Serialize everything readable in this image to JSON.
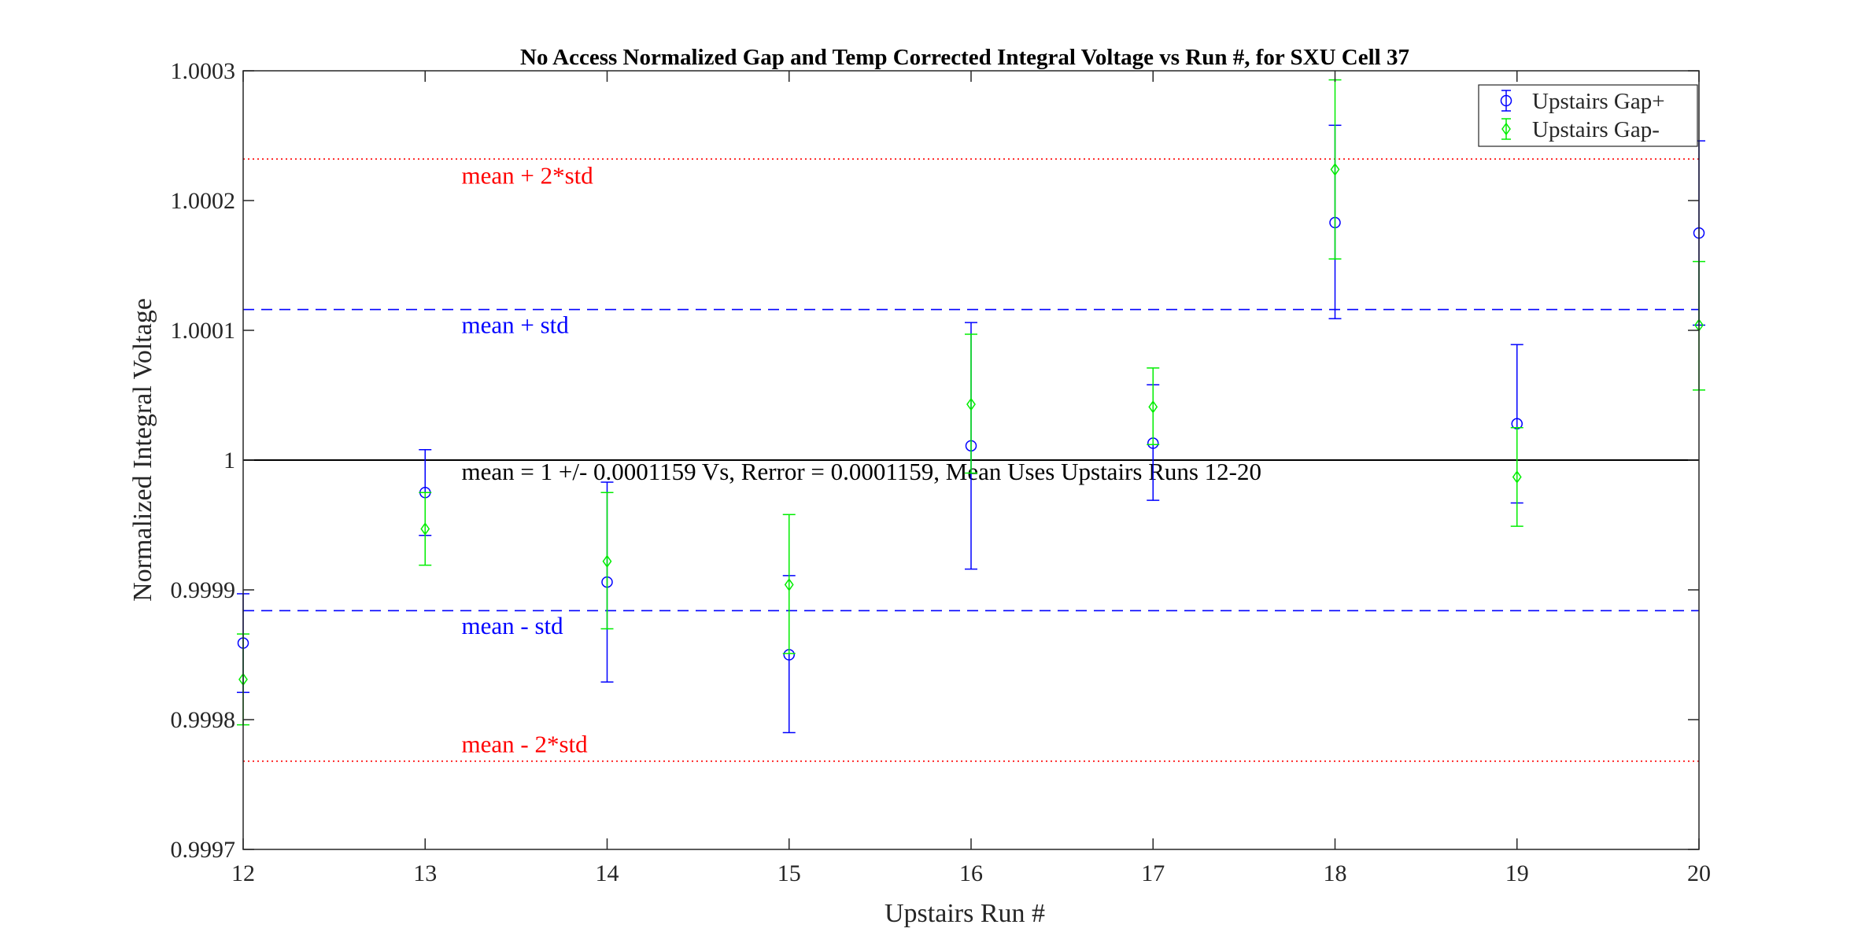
{
  "chart_data": {
    "type": "scatter",
    "title": "No Access Normalized Gap and Temp Corrected Integral Voltage vs Run #, for SXU Cell 37",
    "xlabel": "Upstairs Run #",
    "ylabel": "Normalized Integral Voltage",
    "xlim": [
      12,
      20
    ],
    "ylim": [
      0.9997,
      1.0003
    ],
    "x_ticks": [
      12,
      13,
      14,
      15,
      16,
      17,
      18,
      19,
      20
    ],
    "x_tick_labels": [
      "12",
      "13",
      "14",
      "15",
      "16",
      "17",
      "18",
      "19",
      "20"
    ],
    "y_ticks": [
      0.9997,
      0.9998,
      0.9999,
      1.0,
      1.0001,
      1.0002,
      1.0003
    ],
    "y_tick_labels": [
      "0.9997",
      "0.9998",
      "0.9999",
      "1",
      "1.0001",
      "1.0002",
      "1.0003"
    ],
    "grid": false,
    "legend_position": "top-right",
    "series": [
      {
        "name": "Upstairs Gap+",
        "marker": "circle",
        "color": "#0000ff",
        "x": [
          12,
          13,
          14,
          15,
          16,
          17,
          18,
          19,
          20
        ],
        "y": [
          0.999859,
          0.999975,
          0.999906,
          0.99985,
          1.000011,
          1.000013,
          1.000183,
          1.000028,
          1.000175
        ],
        "err_low": [
          0.999821,
          0.999942,
          0.999829,
          0.99979,
          0.999916,
          0.999969,
          1.000109,
          0.999967,
          1.000104
        ],
        "err_high": [
          0.999897,
          1.000008,
          0.999983,
          0.999911,
          1.000106,
          1.000058,
          1.000258,
          1.000089,
          1.000246
        ]
      },
      {
        "name": "Upstairs Gap-",
        "marker": "diamond",
        "color": "#00ee00",
        "x": [
          12,
          13,
          14,
          15,
          16,
          17,
          18,
          19,
          20
        ],
        "y": [
          0.999831,
          0.999947,
          0.999922,
          0.999904,
          1.000043,
          1.000041,
          1.000224,
          0.999987,
          1.000104
        ],
        "err_low": [
          0.999796,
          0.999919,
          0.99987,
          0.999851,
          0.99999,
          1.000012,
          1.000155,
          0.999949,
          1.000054
        ],
        "err_high": [
          0.999866,
          0.999975,
          0.999975,
          0.999958,
          1.000097,
          1.000071,
          1.000293,
          1.000025,
          1.000153
        ]
      }
    ],
    "reference_lines": [
      {
        "value": 1.000232,
        "style": "dotted",
        "color": "#ff0000"
      },
      {
        "value": 1.000116,
        "style": "dashed",
        "color": "#0000ff"
      },
      {
        "value": 1.0,
        "style": "solid",
        "color": "#000000"
      },
      {
        "value": 0.999884,
        "style": "dashed",
        "color": "#0000ff"
      },
      {
        "value": 0.999768,
        "style": "dotted",
        "color": "#ff0000"
      }
    ],
    "annotations": [
      {
        "text": "mean + 2*std",
        "x": 13.2,
        "y": 1.000213,
        "color": "#ff0000"
      },
      {
        "text": "mean + std",
        "x": 13.2,
        "y": 1.000098,
        "color": "#0000ff"
      },
      {
        "text": "mean = 1 +/- 0.0001159 Vs, Rerror = 0.0001159, Mean Uses Upstairs Runs 12-20",
        "x": 13.2,
        "y": 0.999985,
        "color": "#000000"
      },
      {
        "text": "mean - std",
        "x": 13.2,
        "y": 0.999866,
        "color": "#0000ff"
      },
      {
        "text": "mean - 2*std",
        "x": 13.2,
        "y": 0.999775,
        "color": "#ff0000"
      }
    ]
  }
}
